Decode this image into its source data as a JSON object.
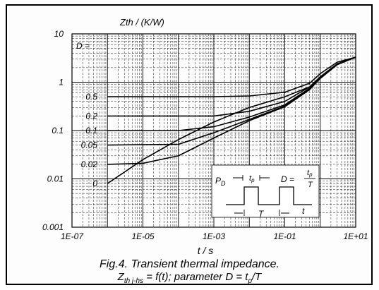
{
  "chart_data": {
    "type": "line",
    "ylabel": "Zth / (K/W)",
    "xlabel": "t / s",
    "xscale": "log",
    "yscale": "log",
    "xlim": [
      1e-07,
      10
    ],
    "ylim": [
      0.001,
      10
    ],
    "xtick_labels": [
      "1E-07",
      "1E-05",
      "1E-03",
      "1E-01",
      "1E+01"
    ],
    "ytick_labels": [
      "10",
      "1",
      "0.1",
      "0.01",
      "0.001"
    ],
    "param_label": "D =",
    "grid": true,
    "series": [
      {
        "name": "0.5",
        "x": [
          1e-06,
          0.0001,
          0.001,
          0.01,
          0.1,
          0.5,
          1,
          3,
          10
        ],
        "y": [
          0.5,
          0.5,
          0.5,
          0.52,
          0.62,
          0.95,
          1.5,
          2.6,
          3.3
        ]
      },
      {
        "name": "0.2",
        "x": [
          1e-06,
          0.0001,
          0.001,
          0.01,
          0.1,
          0.5,
          1,
          3,
          10
        ],
        "y": [
          0.2,
          0.2,
          0.2,
          0.25,
          0.4,
          0.8,
          1.3,
          2.4,
          3.3
        ]
      },
      {
        "name": "0.1",
        "x": [
          1e-06,
          0.0001,
          0.001,
          0.01,
          0.1,
          0.5,
          1,
          3,
          10
        ],
        "y": [
          0.1,
          0.1,
          0.12,
          0.19,
          0.34,
          0.75,
          1.25,
          2.4,
          3.3
        ]
      },
      {
        "name": "0.05",
        "x": [
          1e-06,
          0.0001,
          0.001,
          0.01,
          0.1,
          0.5,
          1,
          3,
          10
        ],
        "y": [
          0.05,
          0.052,
          0.09,
          0.17,
          0.32,
          0.72,
          1.2,
          2.35,
          3.3
        ]
      },
      {
        "name": "0.02",
        "x": [
          1e-06,
          1e-05,
          0.0001,
          0.001,
          0.01,
          0.1,
          0.5,
          1,
          3,
          10
        ],
        "y": [
          0.02,
          0.021,
          0.03,
          0.07,
          0.16,
          0.31,
          0.7,
          1.2,
          2.35,
          3.3
        ]
      },
      {
        "name": "0",
        "x": [
          1e-06,
          1e-05,
          0.0001,
          0.001,
          0.01,
          0.1,
          0.5,
          1,
          3,
          10
        ],
        "y": [
          0.008,
          0.025,
          0.065,
          0.15,
          0.3,
          0.5,
          0.8,
          1.2,
          2.3,
          3.3
        ]
      }
    ],
    "inset": {
      "p_label": "P",
      "p_sub": "D",
      "tp_label": "t",
      "tp_sub": "p",
      "t_label": "T",
      "time_label": "t",
      "d_eq": "D =",
      "d_num": "t",
      "d_num_sub": "p",
      "d_den": "T"
    }
  },
  "caption": {
    "line1": "Fig.4.  Transient thermal impedance.",
    "line2_z": "Z",
    "line2_sub": "th j-hs",
    "line2_rest": " = f(t); parameter D = t",
    "line2_sub2": "p",
    "line2_end": "/T"
  }
}
